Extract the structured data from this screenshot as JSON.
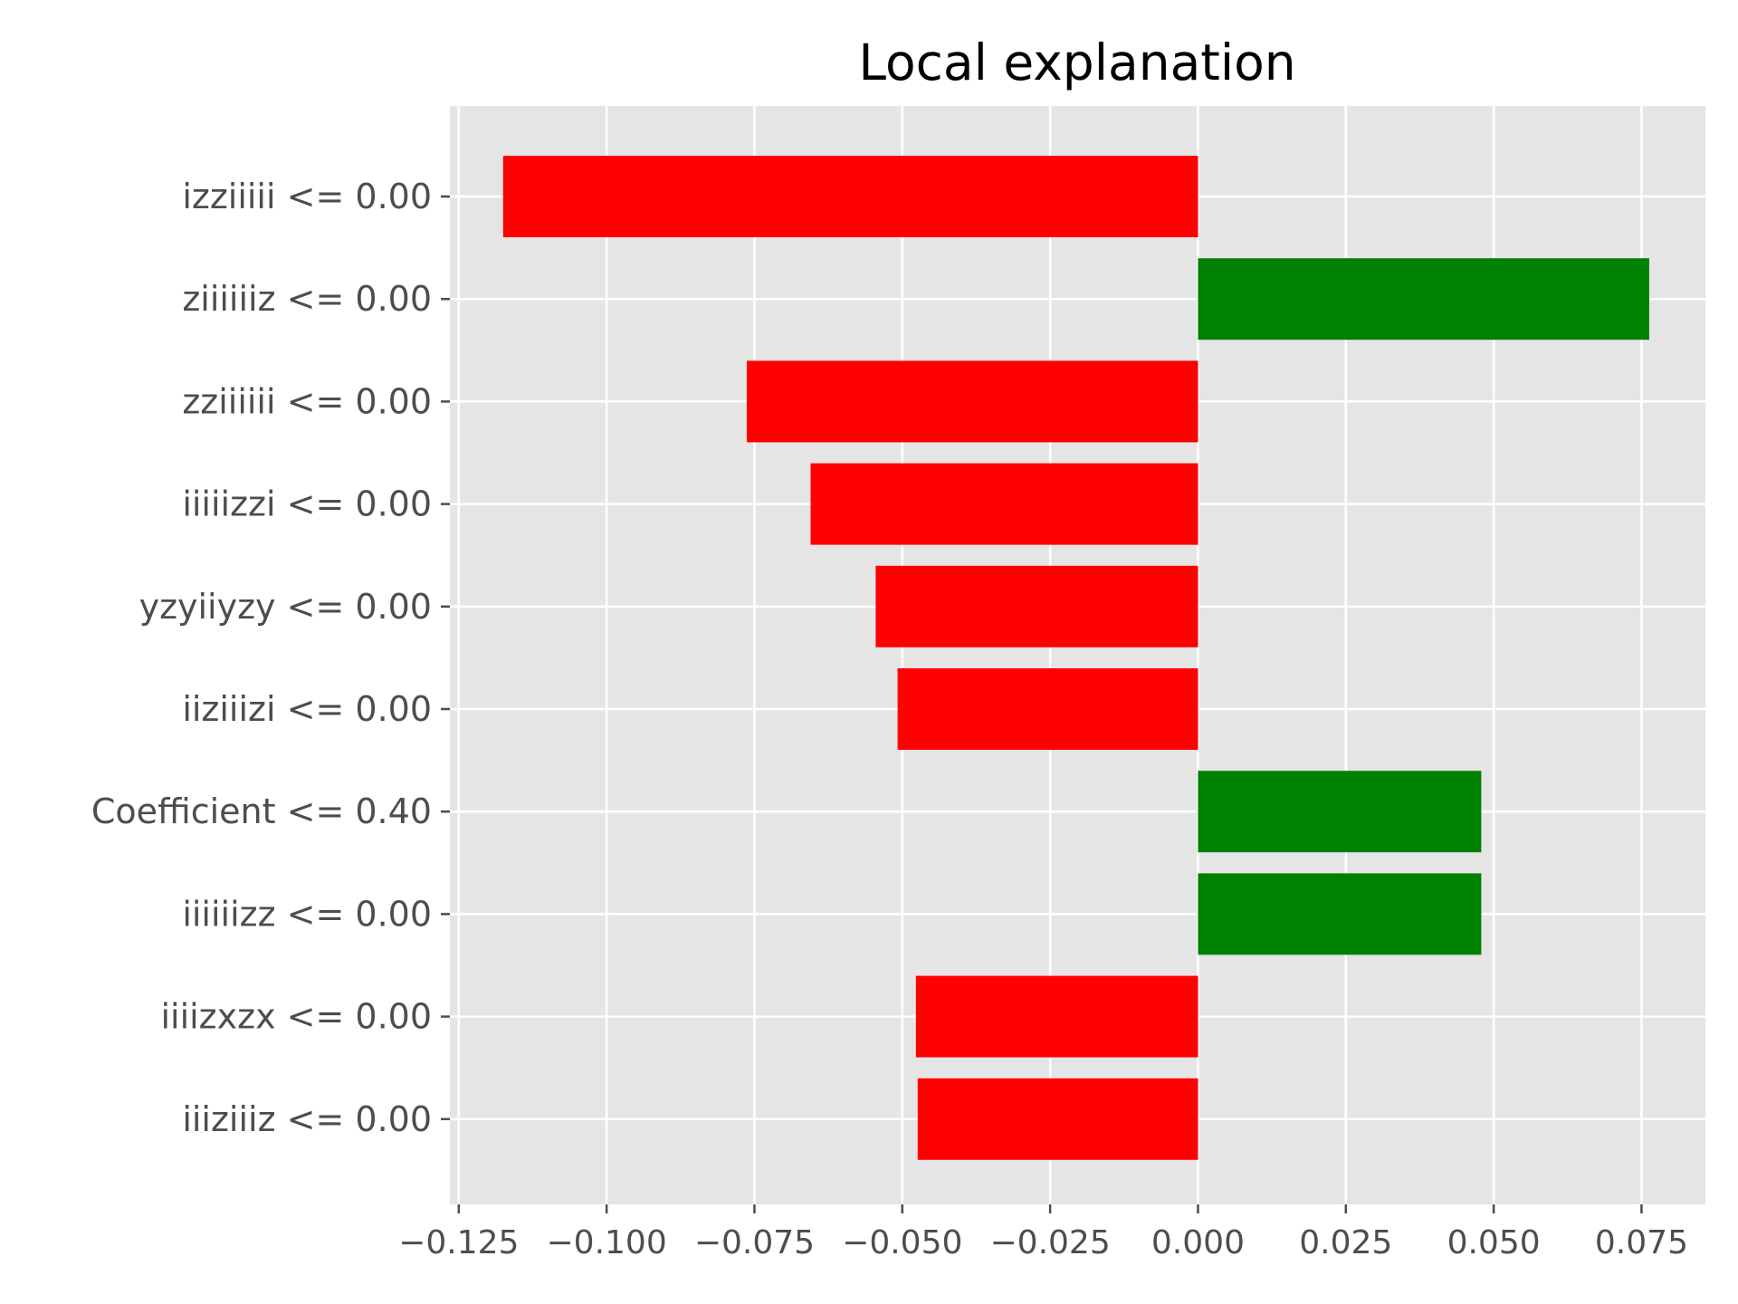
{
  "chart_data": {
    "type": "bar",
    "orientation": "horizontal",
    "title": "Local explanation",
    "xlabel": "",
    "ylabel": "",
    "categories": [
      "izziiiii <= 0.00",
      "ziiiiiiz <= 0.00",
      "zziiiiii <= 0.00",
      "iiiiizzi <= 0.00",
      "yzyiiyzy <= 0.00",
      "iiziiizi <= 0.00",
      "Coefficient <= 0.40",
      "iiiiiizz <= 0.00",
      "iiiizxzx <= 0.00",
      "iiiziiiz <= 0.00"
    ],
    "values": [
      -0.1175,
      0.0763,
      -0.0763,
      -0.0655,
      -0.0545,
      -0.0508,
      0.0479,
      0.0479,
      -0.0477,
      -0.0474
    ],
    "positive_color": "#008000",
    "negative_color": "#ff0000",
    "background_color": "#e5e5e5",
    "xlim": [
      -0.1265,
      0.0858
    ],
    "xticks": [
      -0.125,
      -0.1,
      -0.075,
      -0.05,
      -0.025,
      0.0,
      0.025,
      0.05,
      0.075
    ],
    "xtick_labels": [
      "−0.125",
      "−0.100",
      "−0.075",
      "−0.050",
      "−0.025",
      "0.000",
      "0.025",
      "0.050",
      "0.075"
    ],
    "grid": true,
    "legend": "none"
  }
}
